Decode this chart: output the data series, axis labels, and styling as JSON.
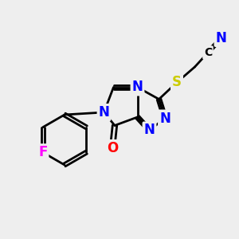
{
  "background_color": "#eeeeee",
  "atom_colors": {
    "C": "#000000",
    "N": "#0000ff",
    "O": "#ff0000",
    "S": "#cccc00",
    "F": "#ff00ff"
  },
  "bond_color": "#000000",
  "bond_width": 2.0,
  "font_size_atom": 12
}
